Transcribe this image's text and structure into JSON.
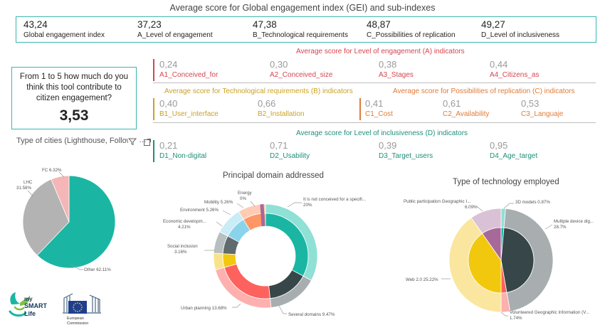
{
  "header": {
    "title": "Average score for Global engagement index (GEI) and sub-indexes"
  },
  "kpis": [
    {
      "value": "43,24",
      "label": "Global engagement index"
    },
    {
      "value": "37,23",
      "label": "A_Level of engagement"
    },
    {
      "value": "47,38",
      "label": "B_Technological requirements"
    },
    {
      "value": "48,87",
      "label": "C_Possibilities of replication"
    },
    {
      "value": "49,27",
      "label": "D_Level of inclusiveness"
    }
  ],
  "question": {
    "text": "From 1 to 5 how much do you think this tool contribute to citizen engagement?",
    "value": "3,53"
  },
  "indicators": {
    "a": {
      "title": "Average score for Level of engagement (A) indicators",
      "color": "#d64550",
      "items": [
        {
          "value": "0,24",
          "label": "A1_Conceived_for"
        },
        {
          "value": "0,30",
          "label": "A2_Conceived_size"
        },
        {
          "value": "0,38",
          "label": "A3_Stages"
        },
        {
          "value": "0,44",
          "label": "A4_Citizens_as"
        }
      ]
    },
    "b": {
      "title": "Average score for Technological requirements (B) indicators",
      "color": "#c9a227",
      "items": [
        {
          "value": "0,40",
          "label": "B1_User_interface"
        },
        {
          "value": "0,66",
          "label": "B2_Installation"
        }
      ]
    },
    "c": {
      "title": "Average score for Possibilities of replication (C) indicators",
      "color": "#e07b39",
      "items": [
        {
          "value": "0,41",
          "label": "C1_Cost"
        },
        {
          "value": "0,61",
          "label": "C2_Availability"
        },
        {
          "value": "0,53",
          "label": "C3_Languaje"
        }
      ]
    },
    "d": {
      "title": "Average score for Level of inclusiveness (D) indicators",
      "color": "#1f8f7a",
      "items": [
        {
          "value": "0,21",
          "label": "D1_Non-digital"
        },
        {
          "value": "0,71",
          "label": "D2_Usability"
        },
        {
          "value": "0,39",
          "label": "D3_Target_users"
        },
        {
          "value": "0,95",
          "label": "D4_Age_target"
        }
      ]
    }
  },
  "cities_visual": {
    "title": "Type of cities (Lighthouse, Followe",
    "icons": [
      "filter-icon",
      "expand-icon"
    ]
  },
  "chart_data": [
    {
      "type": "pie",
      "title": "Type of cities (Lighthouse, Followe",
      "slices": [
        {
          "label": "Other",
          "value": 62.11,
          "label_text": "Other 62.11%",
          "color": "#1ab6a3"
        },
        {
          "label": "LHC",
          "value": 31.58,
          "label_text": "LHC\n31.58%",
          "color": "#b3b3b3"
        },
        {
          "label": "FC",
          "value": 6.32,
          "label_text": "FC 6.32%",
          "color": "#f4b6b6"
        }
      ]
    },
    {
      "type": "pie",
      "title": "Principal domain addressed",
      "series": [
        {
          "name": "inner",
          "values": [
            20,
            9.47,
            13.68,
            3.16,
            4.21,
            5.26,
            5.26,
            0
          ],
          "colors": [
            "#1ab6a3",
            "#374649",
            "#fd625e",
            "#f2c80f",
            "#5f6b6d",
            "#8ad4eb",
            "#fe9666",
            "#a66999"
          ]
        },
        {
          "name": "outer",
          "values": [
            20,
            9.47,
            13.68,
            3.16,
            4.21,
            5.26,
            5.26,
            0
          ],
          "colors": [
            "#8fe0d5",
            "#a8aeb0",
            "#fdb0ae",
            "#f9e38a",
            "#b8bfc0",
            "#c9ecf6",
            "#ffcbb3",
            "#d9c2d5"
          ]
        }
      ],
      "categories": [
        "It is not conceived for a specifi...",
        "Several domains",
        "Urban planning",
        "Social inclusion",
        "Economic developm...",
        "Environment",
        "Mobility",
        "Energy"
      ],
      "labels": [
        {
          "name": "It is not conceived for a specifi...",
          "pct": "20%"
        },
        {
          "name": "Several domains",
          "pct": "9.47%"
        },
        {
          "name": "Urban planning",
          "pct": "13.68%"
        },
        {
          "name": "Social inclusion",
          "pct": "3.16%"
        },
        {
          "name": "Economic developm...",
          "pct": "4.21%"
        },
        {
          "name": "Environment",
          "pct": "5.26%"
        },
        {
          "name": "Mobility",
          "pct": "5.26%"
        },
        {
          "name": "Energy",
          "pct": "0%"
        }
      ]
    },
    {
      "type": "pie",
      "title": "Type of technology employed",
      "categories": [
        "3D models",
        "Multiple device dig...",
        "Volunteered Geographic Information (V...",
        "Web 2.0",
        "Public participation Geographic I..."
      ],
      "values": [
        0.87,
        28.7,
        1.74,
        25.22,
        6.09
      ],
      "inner_colors": [
        "#1ab6a3",
        "#374649",
        "#fd625e",
        "#f2c80f",
        "#a66999"
      ],
      "outer_colors": [
        "#8fe0d5",
        "#a8aeb0",
        "#fdb0ae",
        "#fbe6a0",
        "#d9c2d5"
      ],
      "labels": [
        {
          "line1": "3D models 0.87%",
          "line2": ""
        },
        {
          "line1": "Multiple device dig...",
          "line2": "28.7%"
        },
        {
          "line1": "Volunteered Geographic Information (V...",
          "line2": "1.74%"
        },
        {
          "line1": "Web 2.0 25.22%",
          "line2": ""
        },
        {
          "line1": "Public participation Geographic I...",
          "line2": "6.09%"
        }
      ]
    }
  ],
  "logos": {
    "mysmartlife": [
      "my",
      "SMART",
      "Life"
    ],
    "ec": [
      "European",
      "Commission"
    ]
  }
}
